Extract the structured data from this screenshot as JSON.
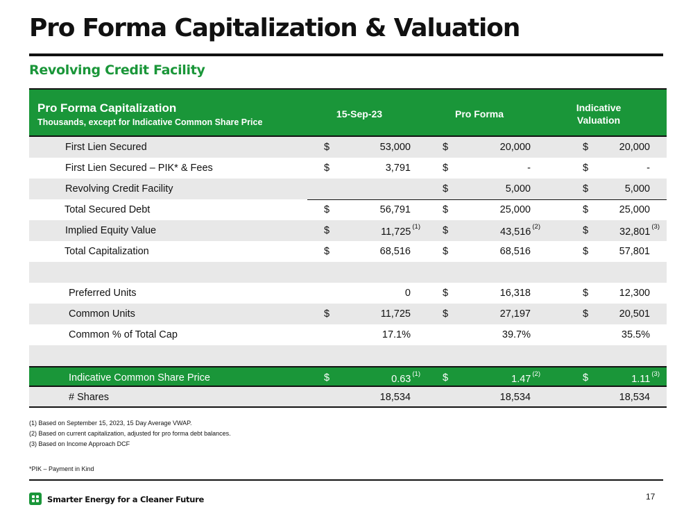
{
  "page": {
    "title": "Pro Forma Capitalization & Valuation",
    "subtitle": "Revolving Credit Facility",
    "page_number": "17",
    "tagline": "Smarter Energy for a Cleaner Future",
    "accent_color": "#1a9639"
  },
  "table": {
    "header": {
      "title": "Pro Forma Capitalization",
      "subtitle": "Thousands, except for Indicative Common Share Price",
      "col1": "15-Sep-23",
      "col2": "Pro Forma",
      "col3_line1": "Indicative",
      "col3_line2": "Valuation"
    },
    "rows": [
      {
        "label": "First Lien Secured",
        "a_cur": "$",
        "a": "53,000",
        "b_cur": "$",
        "b": "20,000",
        "c_cur": "$",
        "c": "20,000"
      },
      {
        "label": "First Lien Secured – PIK* & Fees",
        "a_cur": "$",
        "a": "3,791",
        "b_cur": "$",
        "b": "-",
        "c_cur": "$",
        "c": "-"
      },
      {
        "label": "Revolving Credit Facility",
        "a_cur": "",
        "a": "",
        "b_cur": "$",
        "b": "5,000",
        "c_cur": "$",
        "c": "5,000"
      },
      {
        "label": "Total Secured Debt",
        "a_cur": "$",
        "a": "56,791",
        "b_cur": "$",
        "b": "25,000",
        "c_cur": "$",
        "c": "25,000"
      },
      {
        "label": "Implied Equity Value",
        "a_cur": "$",
        "a": "11,725",
        "a_note": "(1)",
        "b_cur": "$",
        "b": "43,516",
        "b_note": "(2)",
        "c_cur": "$",
        "c": "32,801",
        "c_note": "(3)"
      },
      {
        "label": "Total Capitalization",
        "a_cur": "$",
        "a": "68,516",
        "b_cur": "$",
        "b": "68,516",
        "c_cur": "$",
        "c": "57,801"
      },
      {
        "label": "Preferred Units",
        "a_cur": "",
        "a": "0",
        "b_cur": "$",
        "b": "16,318",
        "c_cur": "$",
        "c": "12,300"
      },
      {
        "label": "Common Units",
        "a_cur": "$",
        "a": "11,725",
        "b_cur": "$",
        "b": "27,197",
        "c_cur": "$",
        "c": "20,501"
      },
      {
        "label": "Common % of Total Cap",
        "a_cur": "",
        "a": "17.1%",
        "b_cur": "",
        "b": "39.7%",
        "c_cur": "",
        "c": "35.5%"
      },
      {
        "label": "Indicative Common Share Price",
        "a_cur": "$",
        "a": "0.63",
        "a_note": "(1)",
        "b_cur": "$",
        "b": "1.47",
        "b_note": "(2)",
        "c_cur": "$",
        "c": "1.11",
        "c_note": "(3)"
      },
      {
        "label": "# Shares",
        "a_cur": "",
        "a": "18,534",
        "b_cur": "",
        "b": "18,534",
        "c_cur": "",
        "c": "18,534"
      }
    ]
  },
  "footnotes": [
    "(1) Based on September 15, 2023, 15 Day Average VWAP.",
    "(2) Based on current capitalization, adjusted for pro forma debt balances.",
    "(3) Based on Income Approach DCF"
  ],
  "pik_note": "*PIK – Payment in Kind"
}
